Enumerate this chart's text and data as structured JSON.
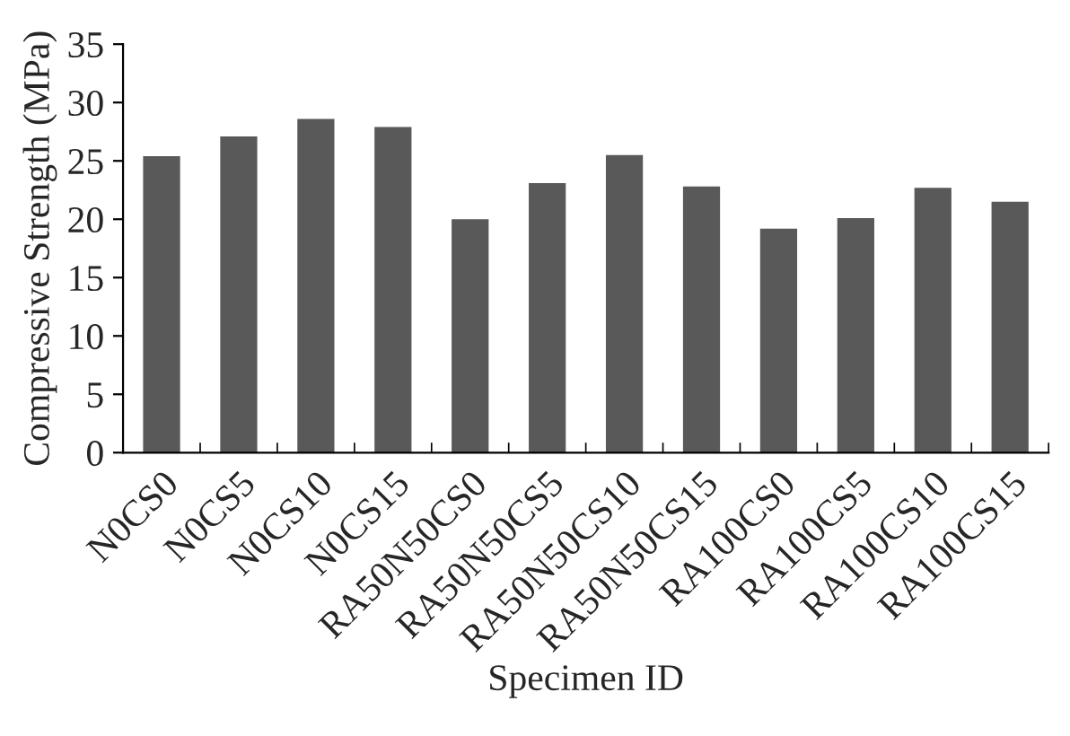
{
  "chart_data": {
    "type": "bar",
    "xlabel": "Specimen ID",
    "ylabel": "Compressive Strength (MPa)",
    "categories": [
      "N0CS0",
      "N0CS5",
      "N0CS10",
      "N0CS15",
      "RA50N50CS0",
      "RA50N50CS5",
      "RA50N50CS10",
      "RA50N50CS15",
      "RA100CS0",
      "RA100CS5",
      "RA100CS10",
      "RA100CS15"
    ],
    "values": [
      25.4,
      27.1,
      28.6,
      27.9,
      20.0,
      23.1,
      25.5,
      22.8,
      19.2,
      20.1,
      22.7,
      21.5
    ],
    "color": "#595959",
    "ylim": [
      0,
      35
    ],
    "yticks": [
      0,
      5,
      10,
      15,
      20,
      25,
      30,
      35
    ],
    "grid": false,
    "legend": false
  }
}
